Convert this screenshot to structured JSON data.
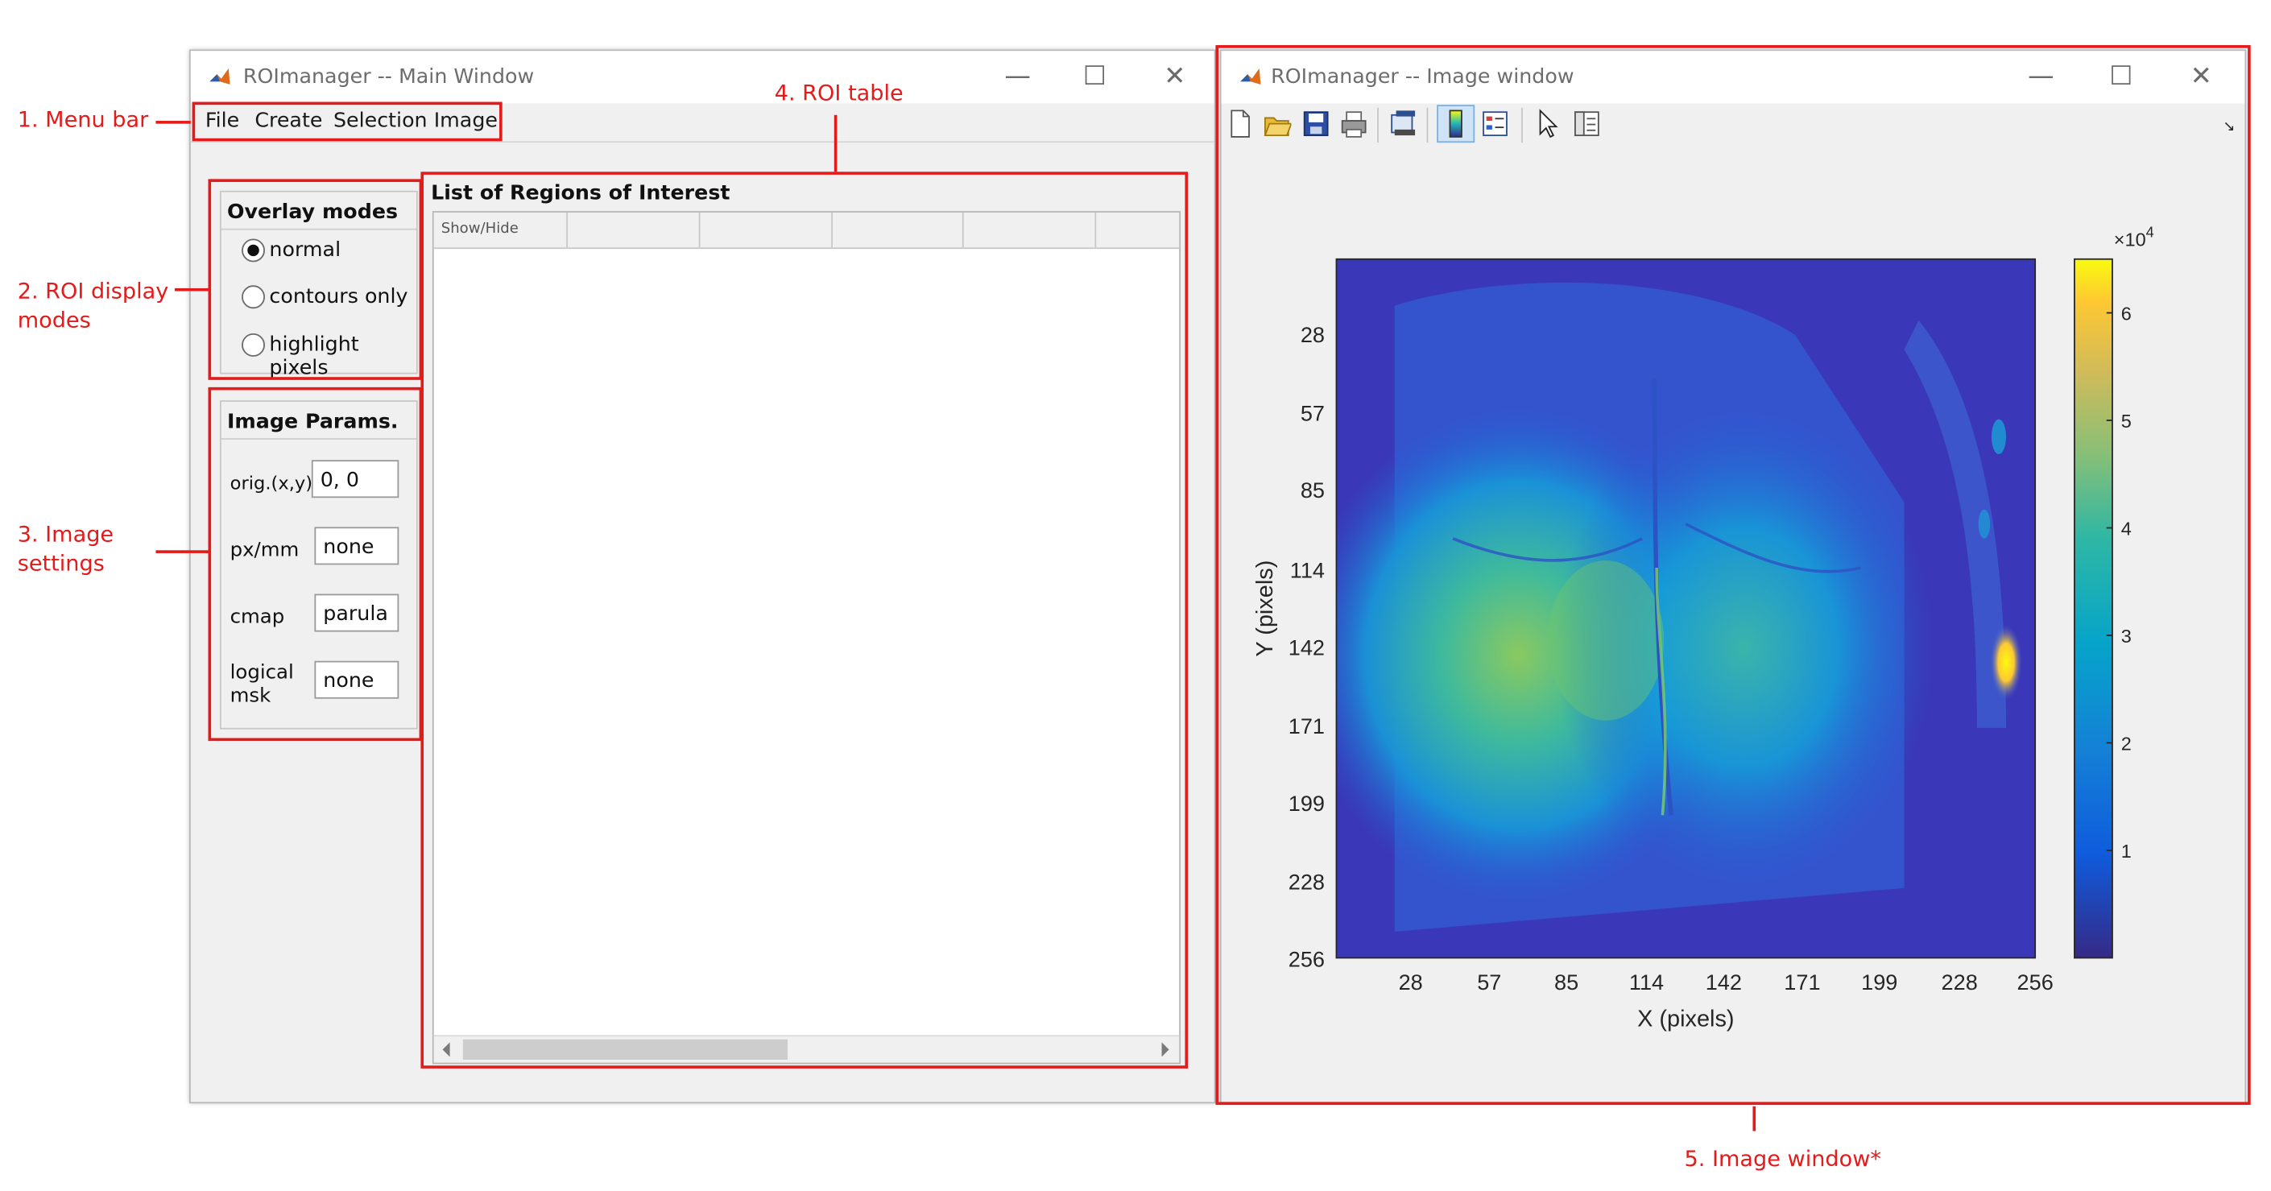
{
  "annotations": {
    "menu_bar": "1. Menu bar",
    "roi_display_modes": "2. ROI display modes",
    "image_settings": "3. Image settings",
    "roi_table": "4. ROI table",
    "image_window": "5. Image window*"
  },
  "main_window": {
    "title": "ROImanager -- Main Window",
    "menu": [
      "File",
      "Create",
      "Selection",
      "Image"
    ],
    "overlay_modes": {
      "title": "Overlay modes",
      "options": [
        "normal",
        "contours only",
        "highlight pixels"
      ],
      "selected": "normal"
    },
    "image_params": {
      "title": "Image Params.",
      "params": [
        {
          "label": "orig.(x,y)",
          "value": "0, 0"
        },
        {
          "label": "px/mm",
          "value": "none"
        },
        {
          "label": "cmap",
          "value": "parula"
        },
        {
          "label": "logical msk",
          "value": "none"
        }
      ]
    },
    "roi_table": {
      "title": "List of Regions of Interest",
      "columns": [
        "Show/Hide",
        "",
        "",
        "",
        "",
        ""
      ],
      "rows": []
    }
  },
  "image_window": {
    "title": "ROImanager -- Image window",
    "toolbar_icons": [
      "new-figure-icon",
      "open-file-icon",
      "save-icon",
      "print-icon",
      "link-plot-icon",
      "insert-colorbar-icon",
      "insert-legend-icon",
      "edit-plot-icon",
      "property-inspector-icon"
    ],
    "axes": {
      "xlabel": "X (pixels)",
      "ylabel": "Y (pixels)",
      "x_ticks": [
        "28",
        "57",
        "85",
        "114",
        "142",
        "171",
        "199",
        "228",
        "256"
      ],
      "y_ticks": [
        "28",
        "57",
        "85",
        "114",
        "142",
        "171",
        "199",
        "228",
        "256"
      ],
      "colormap": "parula",
      "colorbar_exponent": "×10",
      "colorbar_exponent_power": "4",
      "colorbar_ticks": [
        "1",
        "2",
        "3",
        "4",
        "5",
        "6"
      ],
      "colorbar_limits": [
        0,
        6.5
      ]
    }
  },
  "colors": {
    "annotation_red": "#e31b1b",
    "window_bg": "#f0f0f0",
    "parula_low": "#352a87",
    "parula_mid": "#1eb7b8",
    "parula_high": "#f9fb0e"
  }
}
